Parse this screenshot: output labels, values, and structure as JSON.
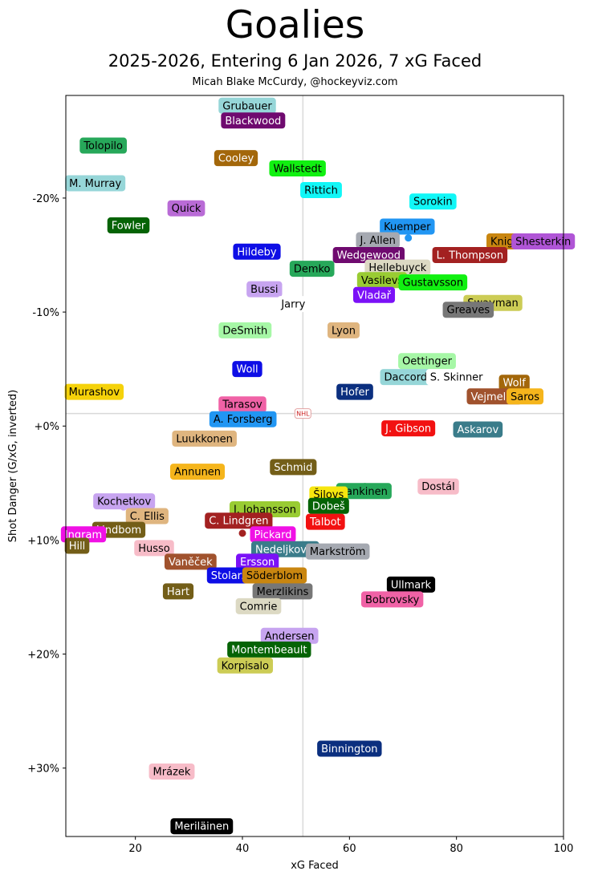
{
  "chart_data": {
    "type": "scatter",
    "title": "Goalies",
    "subtitle": "2025-2026, Entering 6 Jan 2026, 7 xG Faced",
    "credit": "Micah Blake McCurdy, @hockeyviz.com",
    "xlabel": "xG Faced",
    "ylabel": "Shot Danger (G/xG, inverted)",
    "xlim": [
      7,
      100
    ],
    "ylim": [
      -29,
      36
    ],
    "y_inverted": true,
    "x_ticks": [
      {
        "value": 20,
        "label": "20"
      },
      {
        "value": 40,
        "label": "40"
      },
      {
        "value": 60,
        "label": "60"
      },
      {
        "value": 80,
        "label": "80"
      },
      {
        "value": 100,
        "label": "100"
      }
    ],
    "y_ticks": [
      {
        "value": -20,
        "label": "-20%"
      },
      {
        "value": -10,
        "label": "-10%"
      },
      {
        "value": 0,
        "label": "+0%"
      },
      {
        "value": 10,
        "label": "+10%"
      },
      {
        "value": 20,
        "label": "+20%"
      },
      {
        "value": 30,
        "label": "+30%"
      }
    ],
    "reference_lines": {
      "x": 51.3,
      "y": -1.1
    },
    "center_logo": "NHL",
    "points": [
      {
        "name": "Grubauer",
        "x": 40.9,
        "y": -28.1,
        "bg": "#96d6d8",
        "fg": "#000000"
      },
      {
        "name": "Blackwood",
        "x": 42.0,
        "y": -26.8,
        "bg": "#6f0a6f",
        "fg": "#ffffff"
      },
      {
        "name": "Tolopilo",
        "x": 14.0,
        "y": -24.6,
        "bg": "#27a85a",
        "fg": "#000000"
      },
      {
        "name": "Cooley",
        "x": 38.8,
        "y": -23.5,
        "bg": "#a3670a",
        "fg": "#ffffff"
      },
      {
        "name": "Wallstedt",
        "x": 50.3,
        "y": -22.6,
        "bg": "#11f011",
        "fg": "#000000"
      },
      {
        "name": "M. Murray",
        "x": 12.5,
        "y": -21.3,
        "bg": "#96d6d8",
        "fg": "#000000"
      },
      {
        "name": "Rittich",
        "x": 54.7,
        "y": -20.7,
        "bg": "#11f7f7",
        "fg": "#000000"
      },
      {
        "name": "Sorokin",
        "x": 75.6,
        "y": -19.7,
        "bg": "#11f7f7",
        "fg": "#000000"
      },
      {
        "name": "Quick",
        "x": 29.5,
        "y": -19.1,
        "bg": "#b96bd6",
        "fg": "#000000"
      },
      {
        "name": "Fowler",
        "x": 18.7,
        "y": -17.6,
        "bg": "#056305",
        "fg": "#ffffff"
      },
      {
        "name": "Kuemper",
        "x": 70.8,
        "y": -17.5,
        "bg": "#2196f3",
        "fg": "#000000"
      },
      {
        "name": "J. Allen",
        "x": 65.3,
        "y": -16.3,
        "bg": "#a5a9b1",
        "fg": "#000000"
      },
      {
        "name": "Knight",
        "x": 89.5,
        "y": -16.2,
        "bg": "#c98610",
        "fg": "#000000"
      },
      {
        "name": "Shesterkin",
        "x": 96.2,
        "y": -16.2,
        "bg": "#b055d6",
        "fg": "#000000"
      },
      {
        "name": "Hildeby",
        "x": 42.7,
        "y": -15.3,
        "bg": "#0e0ee6",
        "fg": "#ffffff"
      },
      {
        "name": "Wedgewood",
        "x": 63.6,
        "y": -15.0,
        "bg": "#6f0a6f",
        "fg": "#ffffff"
      },
      {
        "name": "L. Thompson",
        "x": 82.5,
        "y": -15.0,
        "bg": "#a32121",
        "fg": "#ffffff"
      },
      {
        "name": "Hellebuyck",
        "x": 69.0,
        "y": -13.9,
        "bg": "#dcd9c3",
        "fg": "#000000"
      },
      {
        "name": "Demko",
        "x": 53.0,
        "y": -13.8,
        "bg": "#27a85a",
        "fg": "#000000"
      },
      {
        "name": "Vasilevs",
        "x": 66.1,
        "y": -12.8,
        "bg": "#99cc33",
        "fg": "#000000"
      },
      {
        "name": "Gustavsson",
        "x": 75.6,
        "y": -12.6,
        "bg": "#11f011",
        "fg": "#000000"
      },
      {
        "name": "Bussi",
        "x": 44.1,
        "y": -12.0,
        "bg": "#c7a4f0",
        "fg": "#000000"
      },
      {
        "name": "Vladař",
        "x": 64.6,
        "y": -11.5,
        "bg": "#7b11f7",
        "fg": "#ffffff"
      },
      {
        "name": "Jarry",
        "x": 49.5,
        "y": -10.7,
        "bg": "#ffffff",
        "fg": "#000000"
      },
      {
        "name": "Swayman",
        "x": 86.8,
        "y": -10.8,
        "bg": "#cccc55",
        "fg": "#000000"
      },
      {
        "name": "Greaves",
        "x": 82.2,
        "y": -10.2,
        "bg": "#777777",
        "fg": "#000000"
      },
      {
        "name": "DeSmith",
        "x": 40.5,
        "y": -8.4,
        "bg": "#a6f7a6",
        "fg": "#000000"
      },
      {
        "name": "Lyon",
        "x": 58.9,
        "y": -8.4,
        "bg": "#dfb57f",
        "fg": "#000000"
      },
      {
        "name": "Oettinger",
        "x": 74.5,
        "y": -5.7,
        "bg": "#a6f7a6",
        "fg": "#000000"
      },
      {
        "name": "Woll",
        "x": 40.9,
        "y": -5.0,
        "bg": "#0e0ee6",
        "fg": "#ffffff"
      },
      {
        "name": "Daccord",
        "x": 70.5,
        "y": -4.3,
        "bg": "#96d6d8",
        "fg": "#000000"
      },
      {
        "name": "S. Skinner",
        "x": 80.0,
        "y": -4.3,
        "bg": "#ffffff",
        "fg": "#000000"
      },
      {
        "name": "Wolf",
        "x": 90.8,
        "y": -3.8,
        "bg": "#a3670a",
        "fg": "#ffffff"
      },
      {
        "name": "Murashov",
        "x": 12.3,
        "y": -3.0,
        "bg": "#f5d20a",
        "fg": "#000000"
      },
      {
        "name": "Hofer",
        "x": 61.0,
        "y": -3.0,
        "bg": "#0b2f7f",
        "fg": "#ffffff"
      },
      {
        "name": "Vejmelka",
        "x": 87.1,
        "y": -2.6,
        "bg": "#a0522d",
        "fg": "#ffffff"
      },
      {
        "name": "Saros",
        "x": 92.8,
        "y": -2.6,
        "bg": "#f5b51c",
        "fg": "#000000"
      },
      {
        "name": "Tarasov",
        "x": 40.0,
        "y": -1.9,
        "bg": "#f062a6",
        "fg": "#000000"
      },
      {
        "name": "A. Forsberg",
        "x": 40.1,
        "y": -0.6,
        "bg": "#2196f3",
        "fg": "#000000"
      },
      {
        "name": "J. Gibson",
        "x": 71.0,
        "y": 0.2,
        "bg": "#f21111",
        "fg": "#ffffff"
      },
      {
        "name": "Askarov",
        "x": 84.0,
        "y": 0.3,
        "bg": "#3a7c8a",
        "fg": "#ffffff"
      },
      {
        "name": "Luukkonen",
        "x": 32.9,
        "y": 1.1,
        "bg": "#dfb57f",
        "fg": "#000000"
      },
      {
        "name": "Schmid",
        "x": 49.5,
        "y": 3.6,
        "bg": "#735e18",
        "fg": "#ffffff"
      },
      {
        "name": "Annunen",
        "x": 31.6,
        "y": 4.0,
        "bg": "#f5b51c",
        "fg": "#000000"
      },
      {
        "name": "Lankinen",
        "x": 62.7,
        "y": 5.7,
        "bg": "#27a85a",
        "fg": "#000000"
      },
      {
        "name": "Dostál",
        "x": 76.6,
        "y": 5.3,
        "bg": "#f7bcc8",
        "fg": "#000000"
      },
      {
        "name": "Šilovs",
        "x": 56.1,
        "y": 6.0,
        "bg": "#f7e60e",
        "fg": "#000000"
      },
      {
        "name": "Kochetkov",
        "x": 17.9,
        "y": 6.6,
        "bg": "#c7a4f0",
        "fg": "#000000"
      },
      {
        "name": "J. Johansson",
        "x": 44.2,
        "y": 7.3,
        "bg": "#99cc33",
        "fg": "#000000"
      },
      {
        "name": "Dobeš",
        "x": 56.1,
        "y": 7.0,
        "bg": "#056305",
        "fg": "#ffffff"
      },
      {
        "name": "C. Ellis",
        "x": 22.2,
        "y": 7.9,
        "bg": "#dfb57f",
        "fg": "#000000"
      },
      {
        "name": "C. Lindgren",
        "x": 39.3,
        "y": 8.3,
        "bg": "#a32121",
        "fg": "#ffffff"
      },
      {
        "name": "Talbot",
        "x": 55.5,
        "y": 8.4,
        "bg": "#f21111",
        "fg": "#ffffff"
      },
      {
        "name": "Lindbom",
        "x": 16.9,
        "y": 9.1,
        "bg": "#735e18",
        "fg": "#ffffff"
      },
      {
        "name": "Ingram",
        "x": 10.3,
        "y": 9.5,
        "bg": "#f011e5",
        "fg": "#ffffff"
      },
      {
        "name": "Pickard",
        "x": 45.7,
        "y": 9.5,
        "bg": "#f011e5",
        "fg": "#ffffff"
      },
      {
        "name": "Hill",
        "x": 9.1,
        "y": 10.5,
        "bg": "#735e18",
        "fg": "#ffffff"
      },
      {
        "name": "Husso",
        "x": 23.5,
        "y": 10.7,
        "bg": "#f7bcc8",
        "fg": "#000000"
      },
      {
        "name": "Nedeljković",
        "x": 48.0,
        "y": 10.8,
        "bg": "#3a7c8a",
        "fg": "#ffffff"
      },
      {
        "name": "Markström",
        "x": 57.8,
        "y": 11.0,
        "bg": "#a5a9b1",
        "fg": "#000000"
      },
      {
        "name": "Vaněček",
        "x": 30.3,
        "y": 11.9,
        "bg": "#a0522d",
        "fg": "#ffffff"
      },
      {
        "name": "Ersson",
        "x": 42.8,
        "y": 11.9,
        "bg": "#7b11f7",
        "fg": "#ffffff"
      },
      {
        "name": "Stolarz",
        "x": 37.5,
        "y": 13.1,
        "bg": "#0e0ee6",
        "fg": "#ffffff"
      },
      {
        "name": "Söderblom",
        "x": 46.0,
        "y": 13.1,
        "bg": "#c98610",
        "fg": "#000000"
      },
      {
        "name": "Ullmark",
        "x": 71.5,
        "y": 13.9,
        "bg": "#000000",
        "fg": "#ffffff"
      },
      {
        "name": "Hart",
        "x": 28.0,
        "y": 14.5,
        "bg": "#735e18",
        "fg": "#ffffff"
      },
      {
        "name": "Merzlikins",
        "x": 47.5,
        "y": 14.5,
        "bg": "#777777",
        "fg": "#000000"
      },
      {
        "name": "Bobrovsky",
        "x": 68.0,
        "y": 15.2,
        "bg": "#f062a6",
        "fg": "#000000"
      },
      {
        "name": "Comrie",
        "x": 43.0,
        "y": 15.8,
        "bg": "#dcd9c3",
        "fg": "#000000"
      },
      {
        "name": "Andersen",
        "x": 48.8,
        "y": 18.4,
        "bg": "#c7a4f0",
        "fg": "#000000"
      },
      {
        "name": "Montembeault",
        "x": 45.0,
        "y": 19.6,
        "bg": "#056305",
        "fg": "#ffffff"
      },
      {
        "name": "Korpisalo",
        "x": 40.5,
        "y": 21.0,
        "bg": "#cccc55",
        "fg": "#000000"
      },
      {
        "name": "Binnington",
        "x": 60.0,
        "y": 28.3,
        "bg": "#0b2f7f",
        "fg": "#ffffff"
      },
      {
        "name": "Mrázek",
        "x": 26.8,
        "y": 30.3,
        "bg": "#f7bcc8",
        "fg": "#000000"
      },
      {
        "name": "Meriläinen",
        "x": 32.4,
        "y": 35.1,
        "bg": "#000000",
        "fg": "#ffffff"
      }
    ],
    "dots": [
      {
        "x": 71.0,
        "y": -16.5,
        "color": "#2196f3"
      },
      {
        "x": 40.0,
        "y": 9.4,
        "color": "#a32121"
      },
      {
        "x": 17.8,
        "y": 7.1,
        "color": "#c7a4f0"
      },
      {
        "x": 62.9,
        "y": 5.3,
        "color": "#27a85a"
      },
      {
        "x": 44.1,
        "y": -11.7,
        "color": "#c7a4f0"
      },
      {
        "x": 65.0,
        "y": -15.5,
        "color": "#a5a9b1"
      },
      {
        "x": 46.7,
        "y": 13.8,
        "color": "#777777"
      }
    ]
  }
}
